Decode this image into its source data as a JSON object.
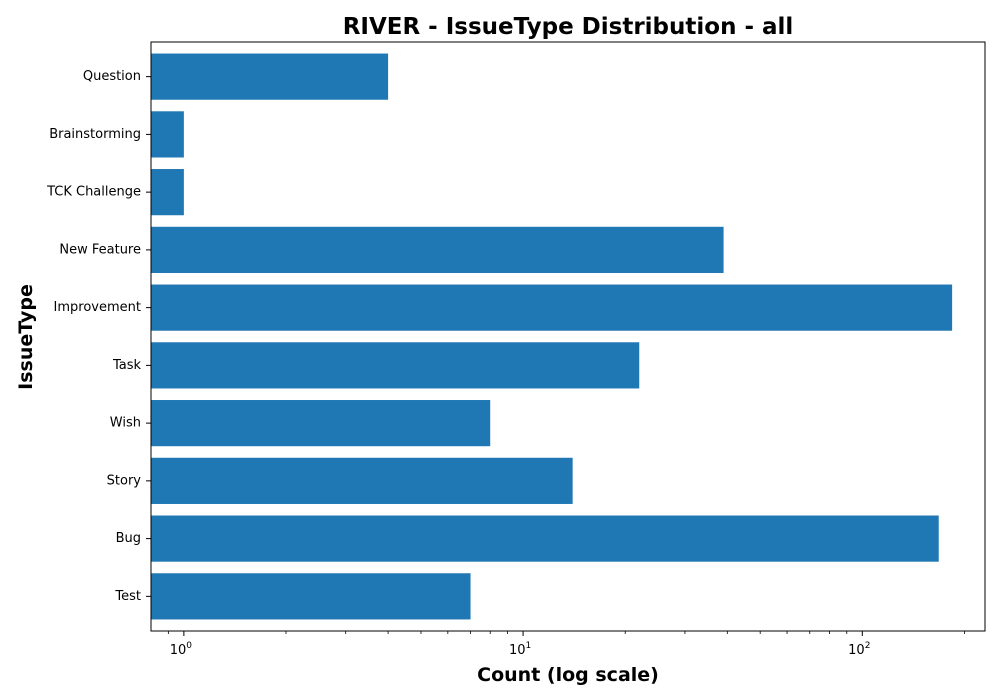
{
  "chart_data": {
    "type": "bar",
    "orientation": "horizontal",
    "title": "RIVER - IssueType Distribution - all",
    "xlabel": "Count (log scale)",
    "ylabel": "IssueType",
    "xscale": "log",
    "xlim": [
      0.8,
      230
    ],
    "categories": [
      "Question",
      "Brainstorming",
      "TCK Challenge",
      "New Feature",
      "Improvement",
      "Task",
      "Wish",
      "Story",
      "Bug",
      "Test"
    ],
    "values": [
      4,
      1,
      1,
      39,
      184,
      22,
      8,
      14,
      168,
      7
    ],
    "x_major_ticks": [
      {
        "value": 1,
        "base": "10",
        "exponent": "0"
      },
      {
        "value": 10,
        "base": "10",
        "exponent": "1"
      },
      {
        "value": 100,
        "base": "10",
        "exponent": "2"
      }
    ],
    "grid": false,
    "legend": "none",
    "bar_color": "#1f77b4"
  }
}
